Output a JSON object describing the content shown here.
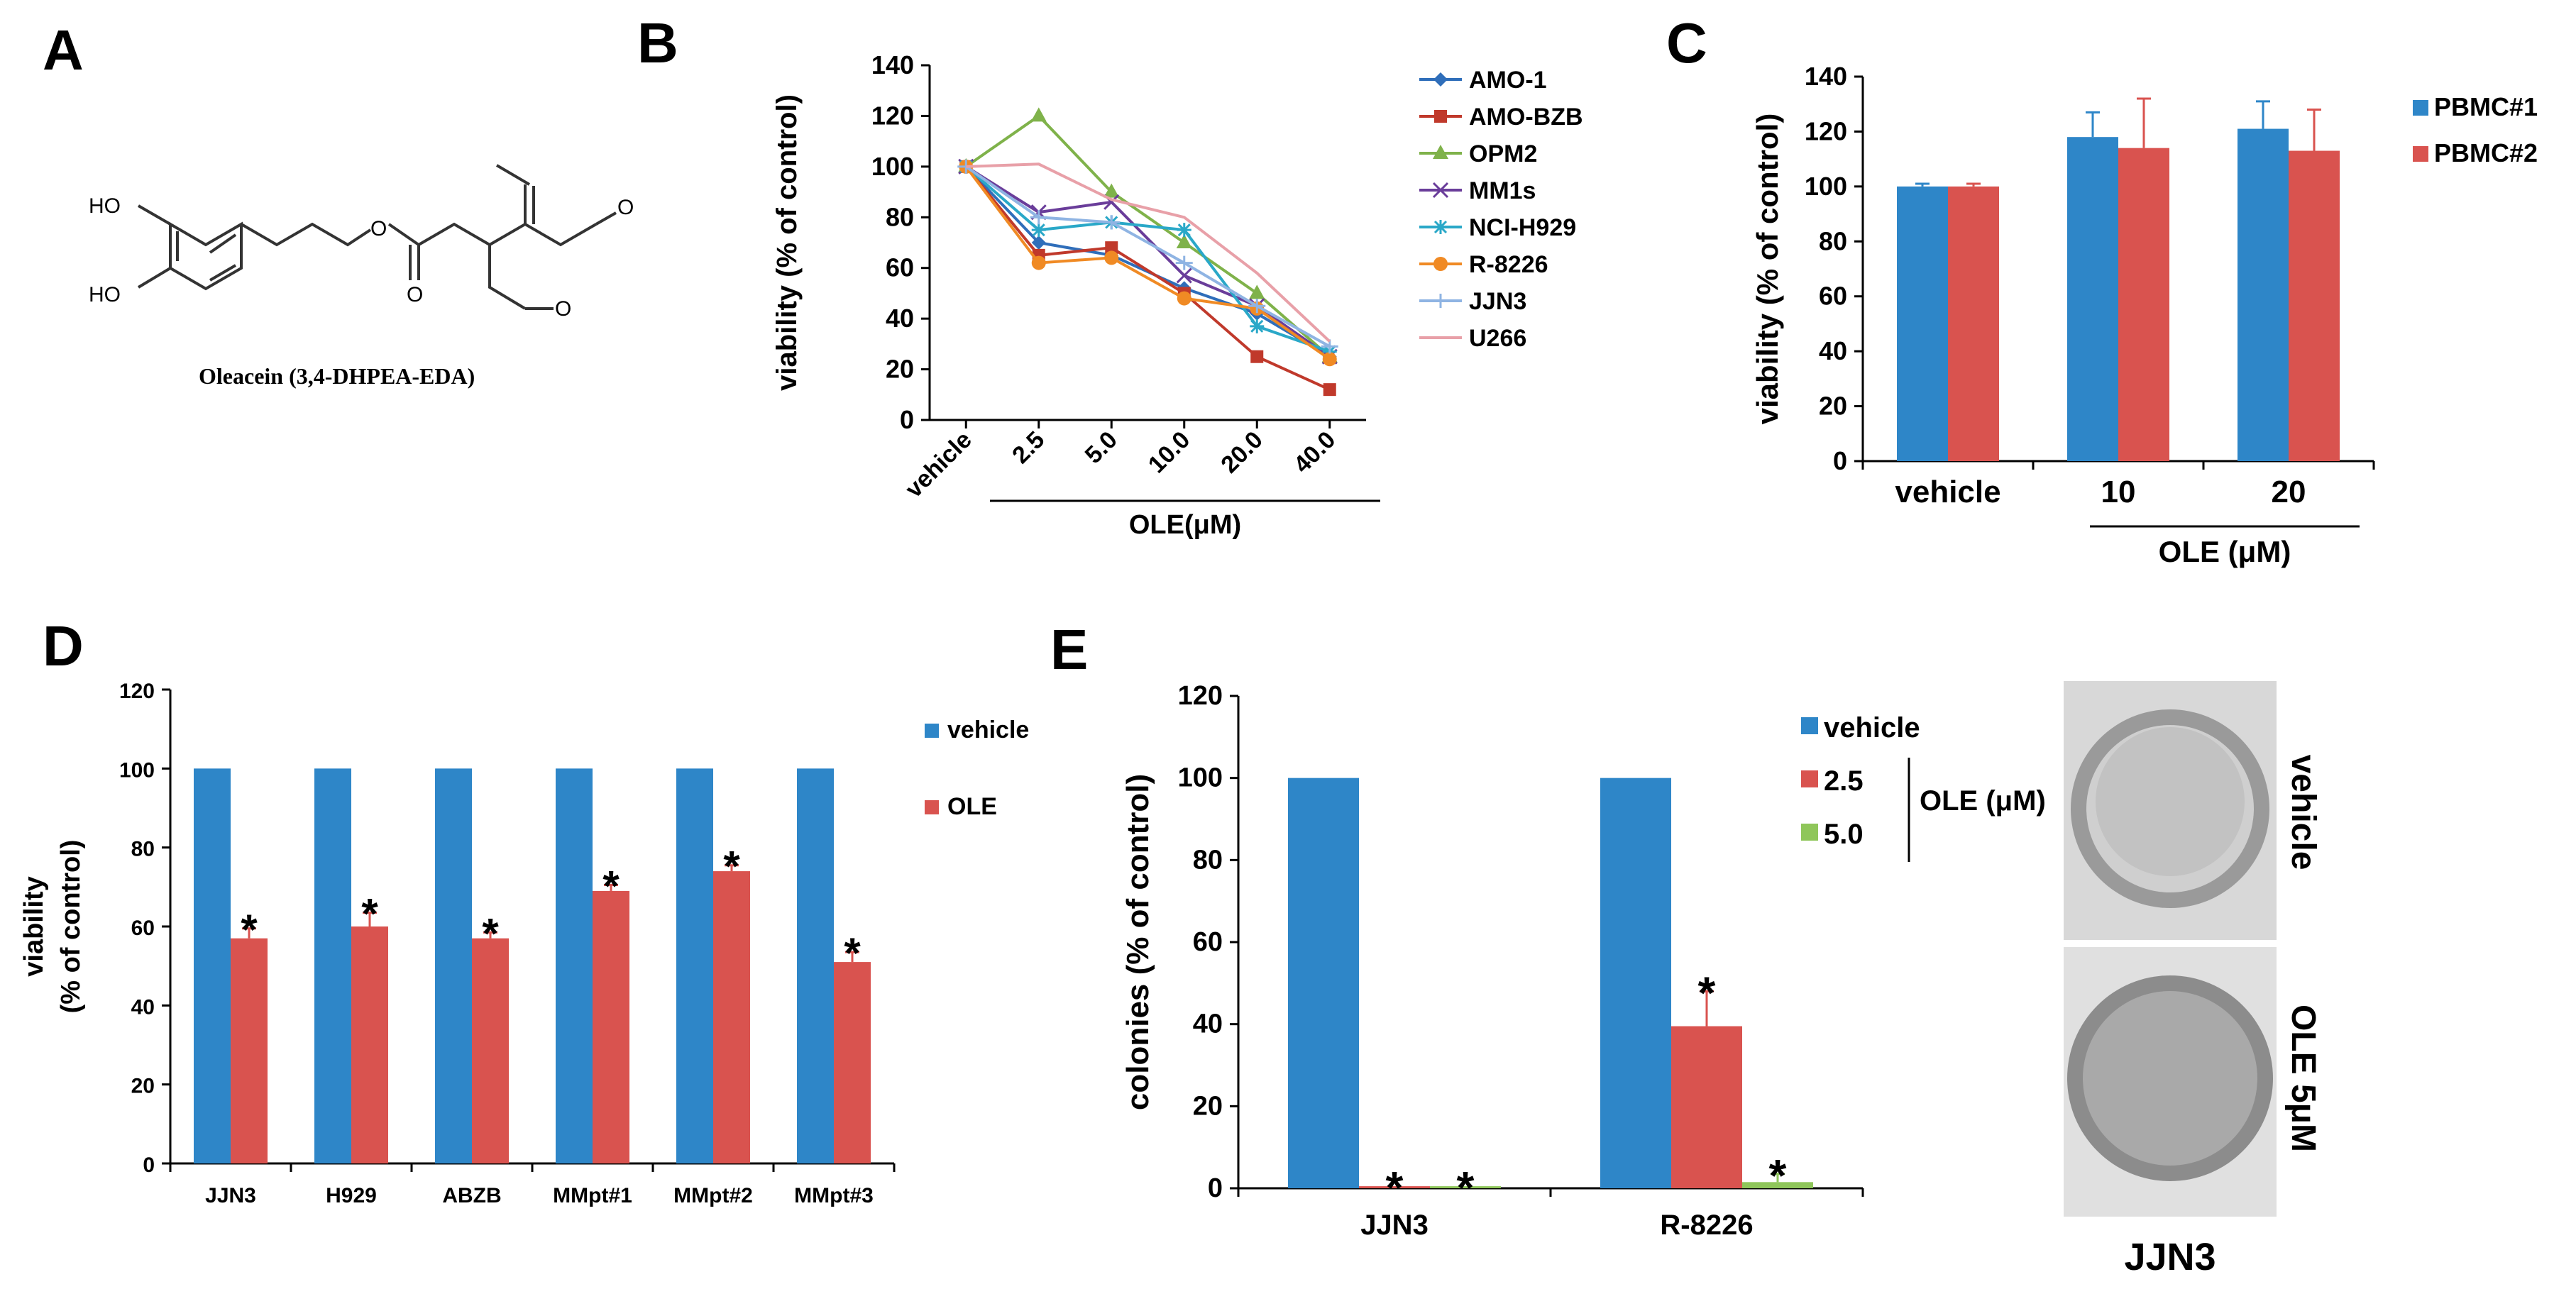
{
  "panels": {
    "a": {
      "letter": "A",
      "molecule_label": "Oleacein (3,4-DHPEA-EDA)",
      "atoms": {
        "oh1": "HO",
        "oh2": "HO",
        "o_ester": "O",
        "o_carbonyl": "O",
        "o_ald1": "O",
        "o_ald2": "O"
      }
    },
    "b": {
      "letter": "B"
    },
    "c": {
      "letter": "C"
    },
    "d": {
      "letter": "D"
    },
    "e": {
      "letter": "E",
      "image_caption": "JJN3",
      "image_labels": [
        "vehicle",
        "OLE 5μM"
      ]
    }
  },
  "colors": {
    "blue": "#2E86C8",
    "red": "#D9534F",
    "green": "#8FC65A"
  },
  "chart_data": [
    {
      "panel": "B",
      "type": "line",
      "title": "",
      "ylabel": "viability (% of control)",
      "xlabel": "OLE(μM)",
      "categories": [
        "vehicle",
        "2.5",
        "5.0",
        "10.0",
        "20.0",
        "40.0"
      ],
      "ylim": [
        0,
        140
      ],
      "yticks": [
        "0",
        "20",
        "40",
        "60",
        "80",
        "100",
        "120",
        "140"
      ],
      "legend_position": "right",
      "series": [
        {
          "name": "AMO-1",
          "color": "#2F6EBA",
          "marker": "diamond",
          "values": [
            100,
            70,
            65,
            52,
            42,
            25
          ]
        },
        {
          "name": "AMO-BZB",
          "color": "#C0392B",
          "marker": "square",
          "values": [
            100,
            65,
            68,
            50,
            25,
            12
          ]
        },
        {
          "name": "OPM2",
          "color": "#7FB24A",
          "marker": "triangle",
          "values": [
            100,
            120,
            90,
            70,
            50,
            25
          ]
        },
        {
          "name": "MM1s",
          "color": "#6A3D9A",
          "marker": "x",
          "values": [
            100,
            82,
            86,
            57,
            45,
            25
          ]
        },
        {
          "name": "NCI-H929",
          "color": "#2AA8C8",
          "marker": "star",
          "values": [
            100,
            75,
            78,
            75,
            37,
            27
          ]
        },
        {
          "name": "R-8226",
          "color": "#F08A24",
          "marker": "circle",
          "values": [
            100,
            62,
            64,
            48,
            44,
            24
          ]
        },
        {
          "name": "JJN3",
          "color": "#8FB4E3",
          "marker": "plus",
          "values": [
            100,
            80,
            78,
            62,
            45,
            29
          ]
        },
        {
          "name": "U266",
          "color": "#E8A0A8",
          "marker": "none",
          "values": [
            100,
            101,
            87,
            80,
            58,
            31
          ]
        }
      ]
    },
    {
      "panel": "C",
      "type": "bar",
      "ylabel": "viability (% of control)",
      "xlabel": "OLE (μM)",
      "categories": [
        "vehicle",
        "10",
        "20"
      ],
      "ylim": [
        0,
        140
      ],
      "yticks": [
        "0",
        "20",
        "40",
        "60",
        "80",
        "100",
        "120",
        "140"
      ],
      "legend_position": "right",
      "series": [
        {
          "name": "PBMC#1",
          "color": "#2E86C8",
          "values": [
            100,
            118,
            121
          ],
          "errors": [
            1,
            9,
            10
          ]
        },
        {
          "name": "PBMC#2",
          "color": "#D9534F",
          "values": [
            100,
            114,
            113
          ],
          "errors": [
            1,
            18,
            15
          ]
        }
      ]
    },
    {
      "panel": "D",
      "type": "bar",
      "ylabel": [
        "viability",
        "(% of control)"
      ],
      "categories": [
        "JJN3",
        "H929",
        "ABZB",
        "MMpt#1",
        "MMpt#2",
        "MMpt#3"
      ],
      "ylim": [
        0,
        120
      ],
      "yticks": [
        "0",
        "20",
        "40",
        "60",
        "80",
        "100",
        "120"
      ],
      "legend_position": "right",
      "series": [
        {
          "name": "vehicle",
          "color": "#2E86C8",
          "values": [
            100,
            100,
            100,
            100,
            100,
            100
          ],
          "errors": [
            0,
            0,
            0,
            0,
            0,
            0
          ]
        },
        {
          "name": "OLE",
          "color": "#D9534F",
          "values": [
            57,
            60,
            57,
            69,
            74,
            51
          ],
          "errors": [
            2.5,
            3.5,
            1.5,
            1.5,
            1.5,
            2.5
          ]
        }
      ],
      "annotations": [
        {
          "text": "*",
          "category": "JJN3",
          "series": "OLE"
        },
        {
          "text": "*",
          "category": "H929",
          "series": "OLE"
        },
        {
          "text": "*",
          "category": "ABZB",
          "series": "OLE"
        },
        {
          "text": "*",
          "category": "MMpt#1",
          "series": "OLE"
        },
        {
          "text": "*",
          "category": "MMpt#2",
          "series": "OLE"
        },
        {
          "text": "*",
          "category": "MMpt#3",
          "series": "OLE"
        }
      ]
    },
    {
      "panel": "E",
      "type": "bar",
      "ylabel": "colonies (% of control)",
      "categories": [
        "JJN3",
        "R-8226"
      ],
      "ylim": [
        0,
        120
      ],
      "yticks": [
        "0",
        "20",
        "40",
        "60",
        "80",
        "100",
        "120"
      ],
      "legend_position": "top-right",
      "legend_group_label": "OLE (μM)",
      "series": [
        {
          "name": "vehicle",
          "color": "#2E86C8",
          "values": [
            100,
            100
          ],
          "errors": [
            0,
            0
          ]
        },
        {
          "name": "2.5",
          "color": "#D9534F",
          "values": [
            0.5,
            39.5
          ],
          "errors": [
            0,
            8.5
          ]
        },
        {
          "name": "5.0",
          "color": "#8FC65A",
          "values": [
            0.5,
            1.5
          ],
          "errors": [
            0,
            2
          ]
        }
      ],
      "annotations": [
        {
          "text": "*",
          "category": "JJN3",
          "series": "2.5"
        },
        {
          "text": "*",
          "category": "JJN3",
          "series": "5.0"
        },
        {
          "text": "*",
          "category": "R-8226",
          "series": "2.5"
        },
        {
          "text": "*",
          "category": "R-8226",
          "series": "5.0"
        }
      ]
    }
  ]
}
